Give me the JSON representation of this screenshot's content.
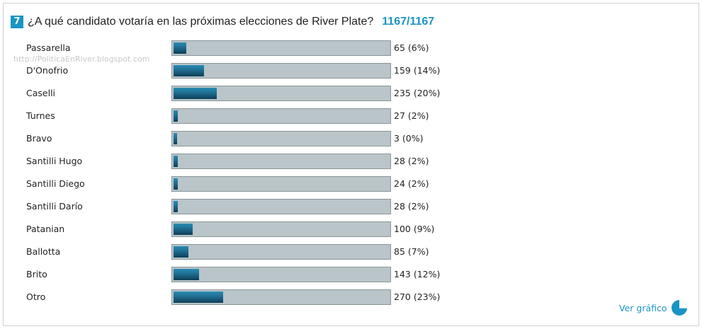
{
  "poll": {
    "number": "7",
    "question": "¿A qué candidato votaría en las próximas elecciones de River Plate?",
    "total": "1167/1167",
    "watermark": "http://PoliticaEnRiver.blogspot.com",
    "options": [
      {
        "name": "Passarella",
        "value_text": "65 (6%)",
        "fraction": 0.06
      },
      {
        "name": "D'Onofrio",
        "value_text": "159 (14%)",
        "fraction": 0.14
      },
      {
        "name": "Caselli",
        "value_text": "235 (20%)",
        "fraction": 0.2
      },
      {
        "name": "Turnes",
        "value_text": "27 (2%)",
        "fraction": 0.02
      },
      {
        "name": "Bravo",
        "value_text": "3 (0%)",
        "fraction": 0.005
      },
      {
        "name": "Santilli Hugo",
        "value_text": "28 (2%)",
        "fraction": 0.02
      },
      {
        "name": "Santilli Diego",
        "value_text": "24 (2%)",
        "fraction": 0.02
      },
      {
        "name": "Santilli Darío",
        "value_text": "28 (2%)",
        "fraction": 0.02
      },
      {
        "name": "Patanian",
        "value_text": "100 (9%)",
        "fraction": 0.09
      },
      {
        "name": "Ballotta",
        "value_text": "85 (7%)",
        "fraction": 0.07
      },
      {
        "name": "Brito",
        "value_text": "143 (12%)",
        "fraction": 0.12
      },
      {
        "name": "Otro",
        "value_text": "270 (23%)",
        "fraction": 0.23
      }
    ],
    "ver_grafico": "Ver gráfico",
    "ver_icon": "pie-chart-icon",
    "colors": {
      "accent": "#1a94c4",
      "bar_fill": "#1f6c90",
      "bar_track": "#b9c5c9"
    }
  }
}
